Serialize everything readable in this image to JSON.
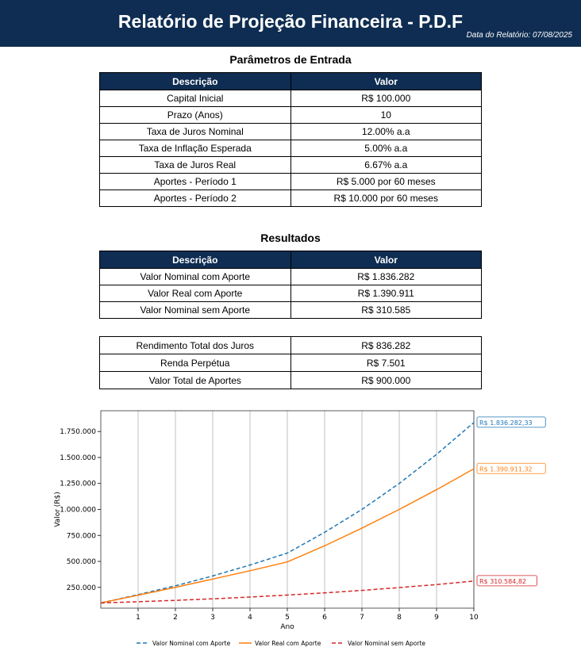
{
  "header": {
    "title": "Relatório de Projeção Financeira - P.D.F",
    "date": "Data do Relatório: 07/08/2025"
  },
  "inputs": {
    "title": "Parâmetros de Entrada",
    "columns": [
      "Descrição",
      "Valor"
    ],
    "rows": [
      [
        "Capital Inicial",
        "R$ 100.000"
      ],
      [
        "Prazo (Anos)",
        "10"
      ],
      [
        "Taxa de Juros Nominal",
        "12.00% a.a"
      ],
      [
        "Taxa de Inflação Esperada",
        "5.00% a.a"
      ],
      [
        "Taxa de Juros Real",
        "6.67% a.a"
      ],
      [
        "Aportes - Período 1",
        "R$ 5.000 por 60 meses"
      ],
      [
        "Aportes - Período 2",
        "R$ 10.000 por 60 meses"
      ]
    ]
  },
  "results": {
    "title": "Resultados",
    "columns": [
      "Descrição",
      "Valor"
    ],
    "rows": [
      [
        "Valor Nominal com Aporte",
        "R$ 1.836.282"
      ],
      [
        "Valor Real com Aporte",
        "R$ 1.390.911"
      ],
      [
        "Valor Nominal sem Aporte",
        "R$ 310.585"
      ]
    ],
    "extra_rows": [
      [
        "Rendimento Total dos Juros",
        "R$ 836.282"
      ],
      [
        "Renda Perpétua",
        "R$ 7.501"
      ],
      [
        "Valor Total de Aportes",
        "R$ 900.000"
      ]
    ]
  },
  "chart_data": {
    "type": "line",
    "xlabel": "Ano",
    "ylabel": "Valor (R$)",
    "xlim": [
      0,
      10
    ],
    "ylim": [
      50000,
      1950000
    ],
    "xticks": [
      "1",
      "2",
      "3",
      "4",
      "5",
      "6",
      "7",
      "8",
      "9",
      "10"
    ],
    "yticks": [
      "250.000",
      "500.000",
      "750.000",
      "1.000.000",
      "1.250.000",
      "1.500.000",
      "1.750.000"
    ],
    "grid": "vertical",
    "legend": "bottom",
    "x": [
      0,
      1,
      2,
      3,
      4,
      5,
      6,
      7,
      8,
      9,
      10
    ],
    "series": [
      {
        "name": "Valor Nominal com Aporte",
        "color": "#1f77b4",
        "style": "dashed",
        "values": [
          100000,
          180000,
          265000,
          360000,
          465000,
          580000,
          780000,
          1000000,
          1250000,
          1530000,
          1836282.33
        ],
        "end_label": "R$ 1.836.282,33"
      },
      {
        "name": "Valor Real com Aporte",
        "color": "#ff7f0e",
        "style": "solid",
        "values": [
          100000,
          175000,
          250000,
          330000,
          410000,
          495000,
          650000,
          820000,
          1000000,
          1190000,
          1390911.32
        ],
        "end_label": "R$ 1.390.911,32"
      },
      {
        "name": "Valor Nominal sem Aporte",
        "color": "#d62728",
        "style": "dashed",
        "values": [
          100000,
          112000,
          125000,
          140000,
          157000,
          176000,
          197000,
          221000,
          248000,
          277000,
          310584.82
        ],
        "end_label": "R$ 310.584,82"
      }
    ]
  }
}
